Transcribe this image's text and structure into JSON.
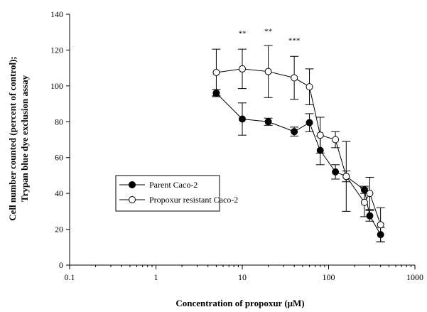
{
  "chart_data": {
    "type": "line",
    "xlabel": "Concentration of propoxur (μM)",
    "ylabel_line1": "Cell number counted (percent of control);",
    "ylabel_line2": "Trypan blue dye exclusion assay",
    "x_scale": "log",
    "xlim": [
      0.1,
      1000
    ],
    "ylim": [
      0,
      140
    ],
    "x_ticks": [
      0.1,
      1,
      10,
      100,
      1000
    ],
    "x_tick_labels": [
      "0.1",
      "1",
      "10",
      "100",
      "1000"
    ],
    "y_ticks": [
      0,
      20,
      40,
      60,
      80,
      100,
      120,
      140
    ],
    "y_tick_labels": [
      "0",
      "20",
      "40",
      "60",
      "80",
      "100",
      "120",
      "140"
    ],
    "grid": false,
    "legend_position": "center-left",
    "series": [
      {
        "name": "Parent Caco-2",
        "marker": "filled-circle",
        "color": "#000000",
        "x": [
          5,
          10,
          20,
          40,
          60,
          80,
          120,
          160,
          260,
          300,
          400
        ],
        "y": [
          96,
          81.5,
          80,
          74.5,
          79.5,
          64,
          52,
          49.5,
          42,
          27.5,
          17
        ],
        "err": [
          2,
          9,
          2,
          2.5,
          5,
          8,
          4,
          3,
          2,
          3,
          4
        ]
      },
      {
        "name": "Propoxur resistant Caco-2",
        "marker": "open-circle",
        "color": "#000000",
        "x": [
          5,
          10,
          20,
          40,
          60,
          80,
          120,
          160,
          260,
          300,
          400
        ],
        "y": [
          107.5,
          109.5,
          108,
          104.5,
          99.5,
          72.5,
          70,
          49.5,
          35,
          40,
          22.5
        ],
        "err": [
          13,
          11,
          14.5,
          12,
          10,
          10,
          4.5,
          19.5,
          8,
          9,
          9.5
        ]
      }
    ],
    "annotations": [
      {
        "text": "**",
        "x": 10,
        "y": 128
      },
      {
        "text": "**",
        "x": 20,
        "y": 129
      },
      {
        "text": "***",
        "x": 40,
        "y": 124
      }
    ]
  }
}
